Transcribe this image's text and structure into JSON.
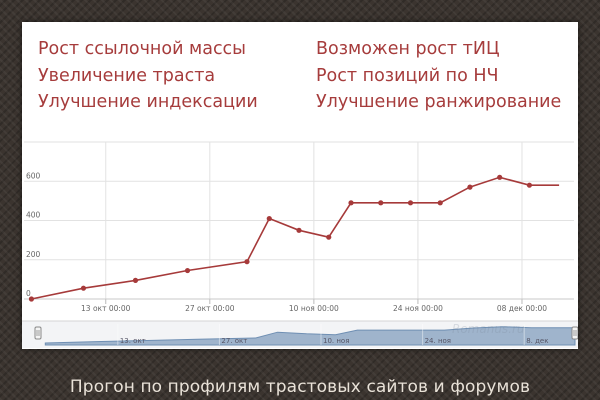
{
  "features_left": [
    "Рост ссылочной массы",
    "Увеличение траста",
    "Улучшение индексации"
  ],
  "features_right": [
    "Возможен рост тИЦ",
    "Рост позиций по НЧ",
    "Улучшение ранжирование"
  ],
  "chart_data": {
    "type": "line",
    "title": "",
    "xlabel": "",
    "ylabel": "",
    "x": [
      "2012-10-03",
      "2012-10-10",
      "2012-10-17",
      "2012-10-24",
      "2012-11-01",
      "2012-11-04",
      "2012-11-08",
      "2012-11-12",
      "2012-11-15",
      "2012-11-19",
      "2012-11-23",
      "2012-11-27",
      "2012-12-01",
      "2012-12-05",
      "2012-12-09",
      "2012-12-13"
    ],
    "values": [
      0,
      55,
      95,
      145,
      190,
      410,
      350,
      315,
      490,
      490,
      490,
      490,
      570,
      620,
      580,
      580
    ],
    "ylim": [
      0,
      800
    ],
    "y_ticks": [
      "0",
      "200",
      "400",
      "600"
    ],
    "x_ticks": [
      "13 окт 00:00",
      "27 окт 00:00",
      "10 ноя 00:00",
      "24 ноя 00:00",
      "08 дек 00:00"
    ],
    "grid": true,
    "line_color": "#a63a3a",
    "navigator": {
      "labels": [
        "13. окт",
        "27. окт",
        "10. ноя",
        "24. ноя",
        "8. дек"
      ],
      "fill_color": "#9fb4cc",
      "line_color": "#6f8fb3"
    }
  },
  "watermark": "Romanus.ru",
  "caption": "Прогон по профилям трастовых сайтов и форумов"
}
